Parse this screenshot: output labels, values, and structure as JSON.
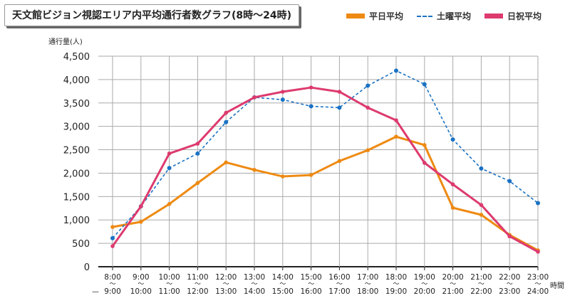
{
  "chart_data": {
    "type": "line",
    "title": "天文館ビジョン視認エリア内平均通行者数グラフ(8時〜24時)",
    "ylabel": "通行量(人)",
    "xlabel": "時間",
    "ylim": [
      0,
      4500
    ],
    "yticks": [
      "0",
      "500",
      "1,000",
      "1,500",
      "2,000",
      "2,500",
      "3,000",
      "3,500",
      "4,000",
      "4,500"
    ],
    "grid": true,
    "legend": "top-right",
    "categories": [
      [
        "8:00",
        "9:00"
      ],
      [
        "9:00",
        "10:00"
      ],
      [
        "10:00",
        "11:00"
      ],
      [
        "11:00",
        "12:00"
      ],
      [
        "12:00",
        "13:00"
      ],
      [
        "13:00",
        "14:00"
      ],
      [
        "14:00",
        "15:00"
      ],
      [
        "15:00",
        "16:00"
      ],
      [
        "16:00",
        "17:00"
      ],
      [
        "17:00",
        "18:00"
      ],
      [
        "18:00",
        "19:00"
      ],
      [
        "19:00",
        "20:00"
      ],
      [
        "20:00",
        "21:00"
      ],
      [
        "21:00",
        "22:00"
      ],
      [
        "22:00",
        "23:00"
      ],
      [
        "23:00",
        "24:00"
      ]
    ],
    "range_separator": "〜",
    "first_row_prefix": "—",
    "series": [
      {
        "name": "平日平均",
        "color": "#ee8a12",
        "style": "solid",
        "values": [
          850,
          960,
          1340,
          1790,
          2230,
          2070,
          1930,
          1960,
          2260,
          2490,
          2780,
          2600,
          1260,
          1110,
          680,
          350
        ]
      },
      {
        "name": "土曜平均",
        "color": "#1a72c4",
        "style": "dashed",
        "values": [
          610,
          1290,
          2110,
          2420,
          3090,
          3620,
          3570,
          3430,
          3400,
          3870,
          4190,
          3900,
          2720,
          2100,
          1830,
          1360
        ]
      },
      {
        "name": "日祝平均",
        "color": "#dd3a6e",
        "style": "solid",
        "values": [
          440,
          1290,
          2420,
          2630,
          3290,
          3620,
          3740,
          3830,
          3740,
          3400,
          3130,
          2220,
          1760,
          1320,
          650,
          320
        ]
      }
    ]
  }
}
